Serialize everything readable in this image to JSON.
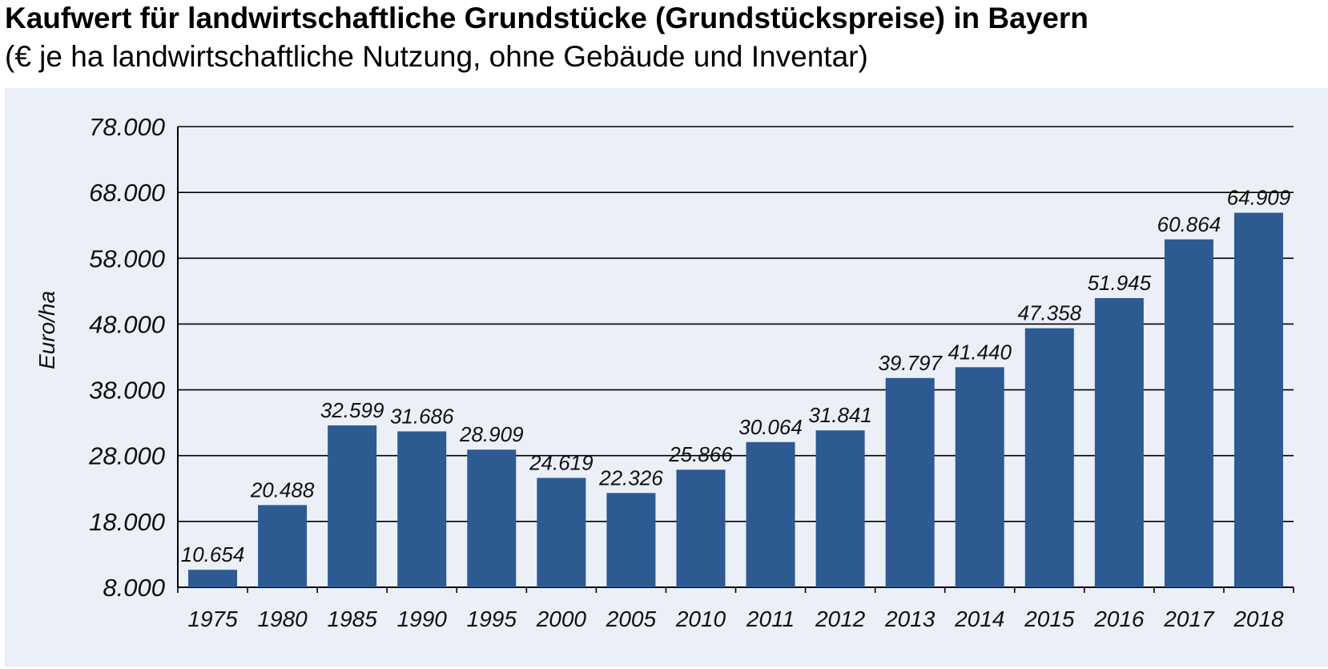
{
  "title": "Kaufwert für landwirtschaftliche Grundstücke (Grundstückspreise) in Bayern",
  "subtitle": "(€ je ha landwirtschaftliche Nutzung, ohne Gebäude und Inventar)",
  "colors": {
    "bar": "#2d5a91",
    "panel": "#ebeff8",
    "grid": "#000000"
  },
  "chart_data": {
    "type": "bar",
    "ylabel": "Euro/ha",
    "xlabel": "",
    "ylim": [
      8000,
      78000
    ],
    "yticks": [
      8000,
      18000,
      28000,
      38000,
      48000,
      58000,
      68000,
      78000
    ],
    "ytick_labels": [
      "8.000",
      "18.000",
      "28.000",
      "38.000",
      "48.000",
      "58.000",
      "68.000",
      "78.000"
    ],
    "grid": true,
    "categories": [
      "1975",
      "1980",
      "1985",
      "1990",
      "1995",
      "2000",
      "2005",
      "2010",
      "2011",
      "2012",
      "2013",
      "2014",
      "2015",
      "2016",
      "2017",
      "2018"
    ],
    "values": [
      10654,
      20488,
      32599,
      31686,
      28909,
      24619,
      22326,
      25866,
      30064,
      31841,
      39797,
      41440,
      47358,
      51945,
      60864,
      64909
    ],
    "value_labels": [
      "10.654",
      "20.488",
      "32.599",
      "31.686",
      "28.909",
      "24.619",
      "22.326",
      "",
      "30.064",
      "31.841",
      "39.797",
      "41.440",
      "47.358",
      "51.945",
      "60.864",
      "64.909"
    ],
    "extra_labels": [
      "25.866"
    ]
  }
}
